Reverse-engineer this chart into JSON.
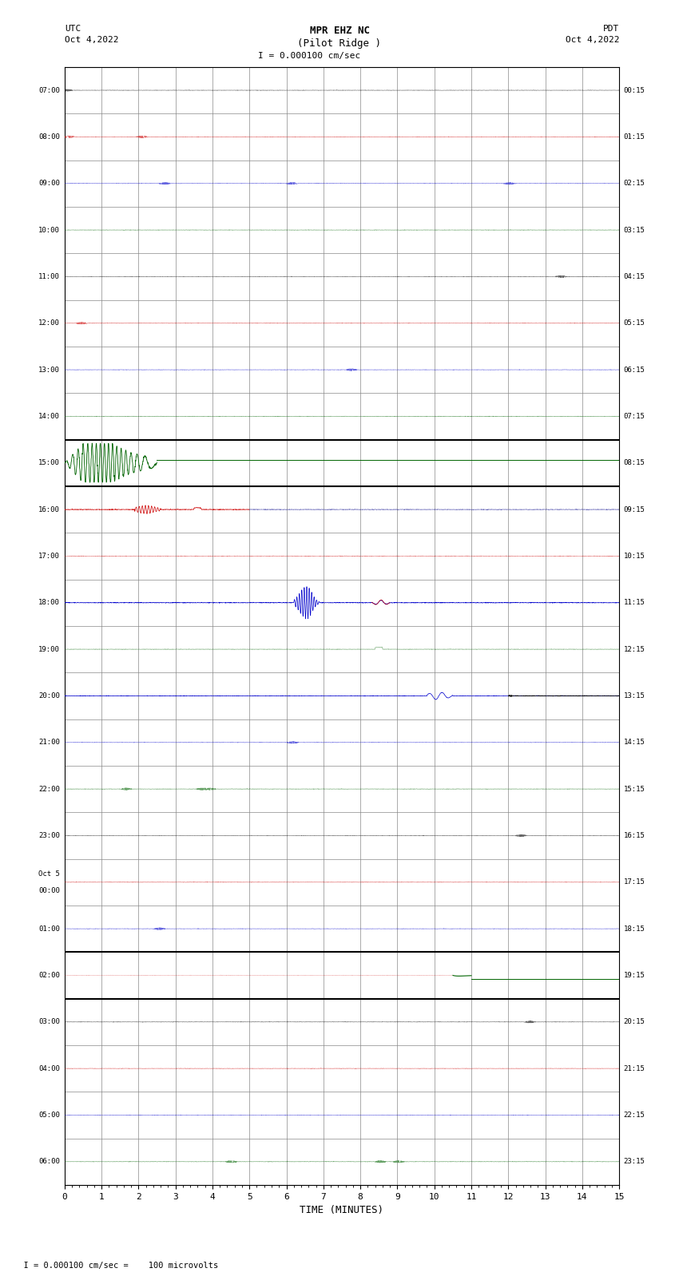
{
  "title_line1": "MPR EHZ NC",
  "title_line2": "(Pilot Ridge )",
  "title_line3": "I = 0.000100 cm/sec",
  "label_utc": "UTC",
  "label_pdt": "PDT",
  "date_left": "Oct 4,2022",
  "date_right": "Oct 4,2022",
  "xlabel": "TIME (MINUTES)",
  "footer": "  I = 0.000100 cm/sec =    100 microvolts",
  "left_labels": [
    "07:00",
    "08:00",
    "09:00",
    "10:00",
    "11:00",
    "12:00",
    "13:00",
    "14:00",
    "15:00",
    "16:00",
    "17:00",
    "18:00",
    "19:00",
    "20:00",
    "21:00",
    "22:00",
    "23:00",
    "Oct 5\n00:00",
    "01:00",
    "02:00",
    "03:00",
    "04:00",
    "05:00",
    "06:00"
  ],
  "right_labels": [
    "00:15",
    "01:15",
    "02:15",
    "03:15",
    "04:15",
    "05:15",
    "06:15",
    "07:15",
    "08:15",
    "09:15",
    "10:15",
    "11:15",
    "12:15",
    "13:15",
    "14:15",
    "15:15",
    "16:15",
    "17:15",
    "18:15",
    "19:15",
    "20:15",
    "21:15",
    "22:15",
    "23:15"
  ],
  "n_rows": 24,
  "x_min": 0,
  "x_max": 15,
  "x_ticks": [
    0,
    1,
    2,
    3,
    4,
    5,
    6,
    7,
    8,
    9,
    10,
    11,
    12,
    13,
    14,
    15
  ],
  "background_color": "#ffffff",
  "grid_color": "#888888",
  "trace_color_black": "#000000",
  "trace_color_blue": "#0000aa",
  "trace_color_green": "#006400",
  "trace_color_red": "#cc0000",
  "n_rows_visible": 24
}
